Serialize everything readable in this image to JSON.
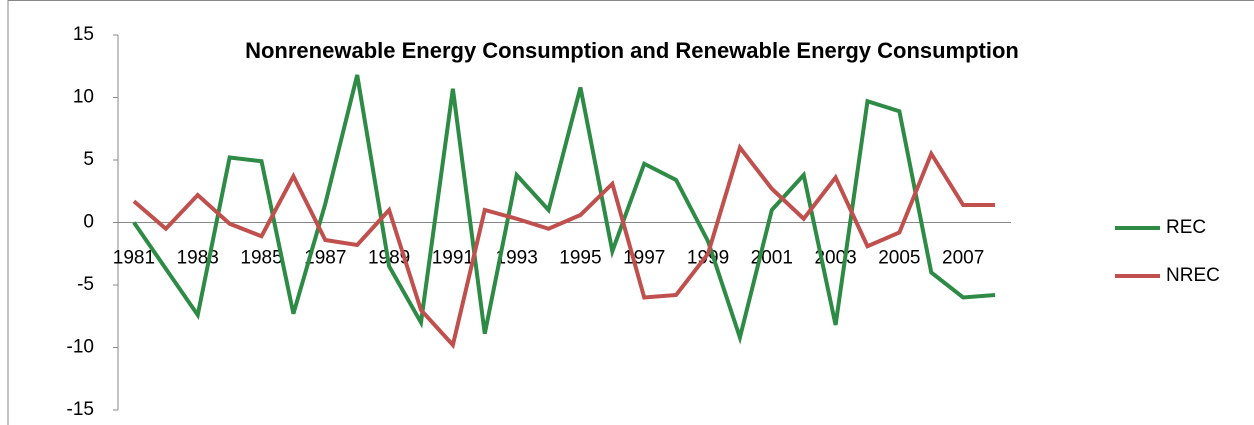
{
  "chart_data": {
    "type": "line",
    "title": "Nonrenewable Energy Consumption  and Renewable Energy Consumption",
    "categories": [
      "1981",
      null,
      "1983",
      null,
      "1985",
      null,
      "1987",
      null,
      "1989",
      null,
      "1991",
      null,
      "1993",
      null,
      "1995",
      null,
      "1997",
      null,
      "1999",
      null,
      "2001",
      null,
      "2003",
      null,
      "2005",
      null,
      "2007",
      null
    ],
    "series": [
      {
        "name": "REC",
        "color": "#2e8b45",
        "values": [
          0,
          -3.7,
          -7.4,
          5.2,
          4.9,
          -7.3,
          1.5,
          11.8,
          -3.5,
          -8.0,
          10.7,
          -8.9,
          3.8,
          1.0,
          10.8,
          -2.3,
          4.7,
          3.4,
          -1.5,
          -9.2,
          1.0,
          3.8,
          -8.2,
          9.7,
          8.9,
          -4.0,
          -6.0,
          -5.8
        ]
      },
      {
        "name": "NREC",
        "color": "#c0504d",
        "values": [
          1.7,
          -0.5,
          2.2,
          -0.1,
          -1.1,
          3.7,
          -1.4,
          -1.8,
          1.0,
          -7.0,
          -9.8,
          1.0,
          0.3,
          -0.5,
          0.6,
          3.1,
          -6.0,
          -5.8,
          -2.5,
          6.0,
          2.7,
          0.3,
          3.6,
          -1.9,
          -0.8,
          5.5,
          1.4,
          1.4
        ]
      }
    ],
    "ylim": [
      -15,
      15
    ],
    "yticks": [
      -15,
      -10,
      -5,
      0,
      5,
      10,
      15
    ],
    "grid": false,
    "legend": "right"
  }
}
